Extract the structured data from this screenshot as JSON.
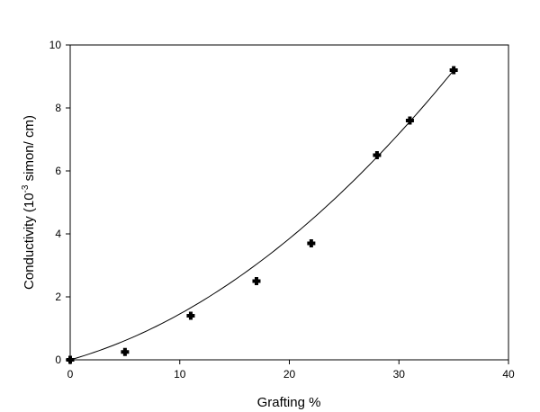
{
  "chart_data": {
    "type": "scatter",
    "xlabel": "Grafting %",
    "ylabel_main": "Conductivity (10",
    "ylabel_exp": "-3",
    "ylabel_rest": " simon/ cm)",
    "xlim": [
      0,
      40
    ],
    "ylim": [
      0,
      10
    ],
    "xticks": [
      0,
      10,
      20,
      30,
      40
    ],
    "yticks": [
      0,
      2,
      4,
      6,
      8,
      10
    ],
    "grid": false,
    "series": [
      {
        "points": [
          {
            "x": 0,
            "y": 0
          },
          {
            "x": 5,
            "y": 0.25
          },
          {
            "x": 11,
            "y": 1.4
          },
          {
            "x": 17,
            "y": 2.5
          },
          {
            "x": 22,
            "y": 3.7
          },
          {
            "x": 28,
            "y": 6.5
          },
          {
            "x": 31,
            "y": 7.6
          },
          {
            "x": 35,
            "y": 9.2
          }
        ],
        "marker": "plus-filled",
        "color": "#000000"
      }
    ],
    "fit_curve": {
      "type": "polynomial",
      "coefficients": [
        0.0,
        0.0987,
        0.00469
      ],
      "x_range": [
        0,
        35
      ],
      "color": "#000000"
    }
  }
}
